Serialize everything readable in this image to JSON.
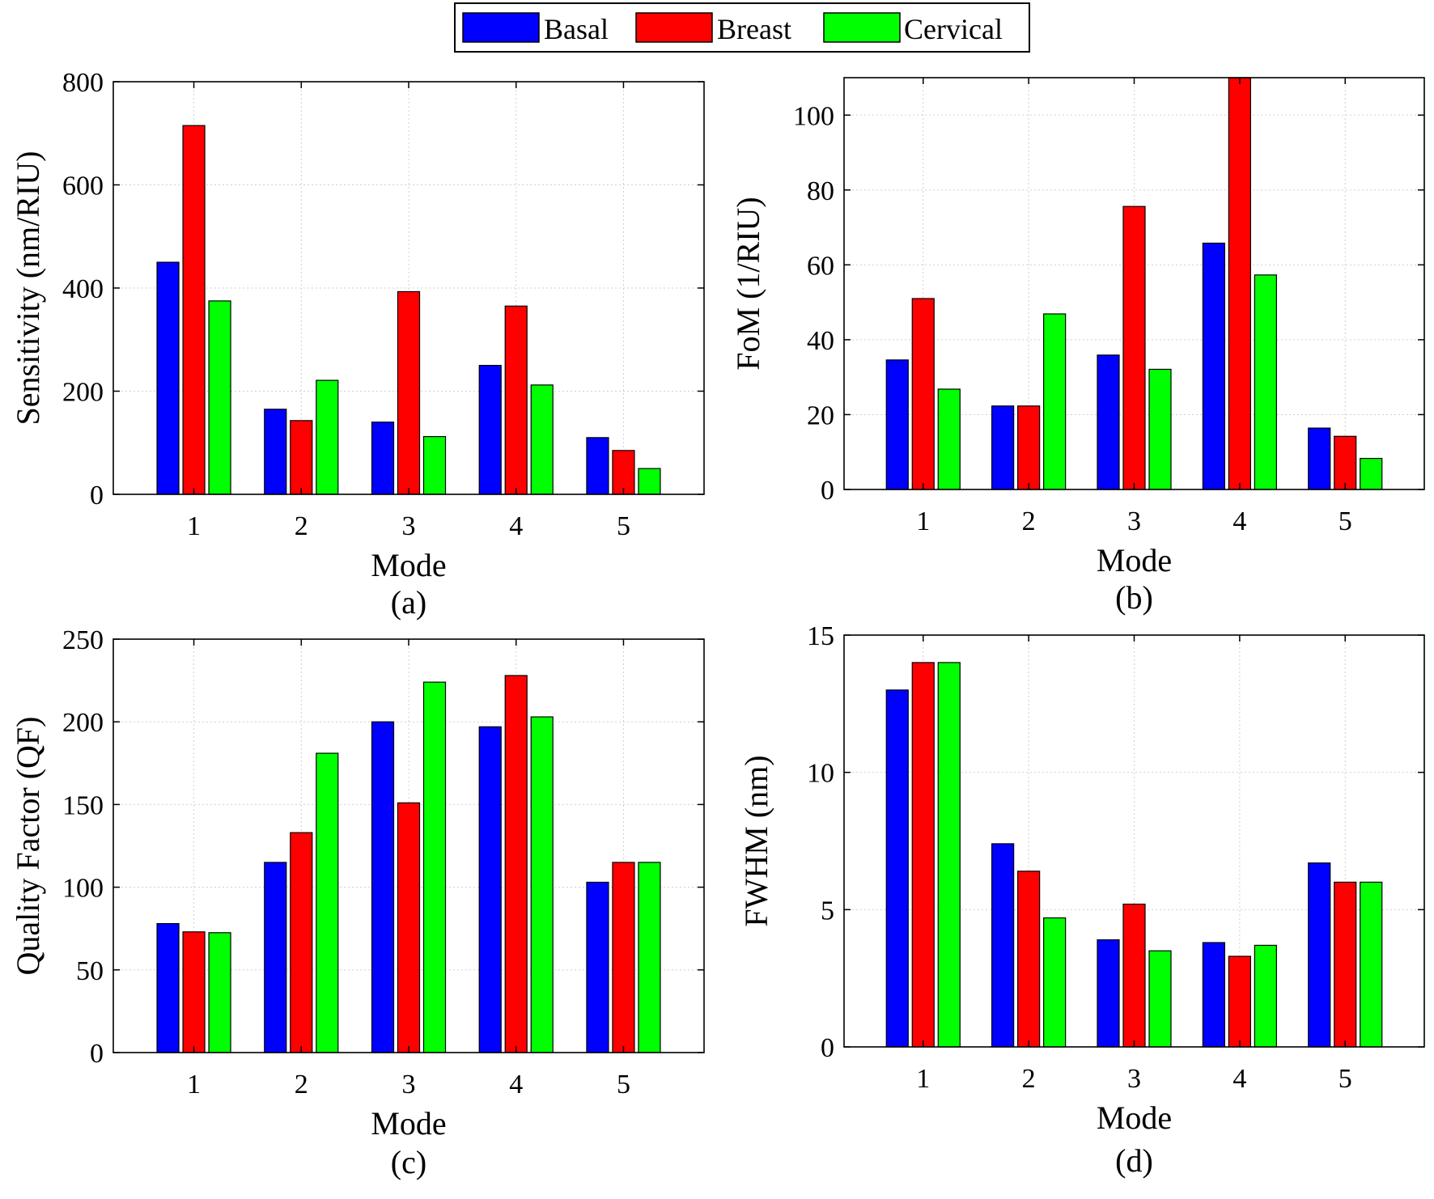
{
  "legend": {
    "entries": [
      {
        "name": "Basal",
        "color": "#0000ff"
      },
      {
        "name": "Breast",
        "color": "#ff0000"
      },
      {
        "name": "Cervical",
        "color": "#00ff00"
      }
    ],
    "placement": "top-center"
  },
  "chart_data": [
    {
      "id": "a",
      "type": "bar",
      "panel_label": "(a)",
      "xlabel": "Mode",
      "ylabel": "Sensitivity (nm/RIU)",
      "categories": [
        "1",
        "2",
        "3",
        "4",
        "5"
      ],
      "yticks": [
        0,
        200,
        400,
        600,
        800
      ],
      "ylim": [
        0,
        800
      ],
      "grid": true,
      "series": [
        {
          "name": "Basal",
          "values": [
            450,
            165,
            140,
            250,
            110
          ]
        },
        {
          "name": "Breast",
          "values": [
            715,
            143,
            393,
            365,
            85
          ]
        },
        {
          "name": "Cervical",
          "values": [
            375,
            221,
            112,
            212,
            50
          ]
        }
      ]
    },
    {
      "id": "b",
      "type": "bar",
      "panel_label": "(b)",
      "xlabel": "Mode",
      "ylabel": "FoM (1/RIU)",
      "categories": [
        "1",
        "2",
        "3",
        "4",
        "5"
      ],
      "yticks": [
        0,
        20,
        40,
        60,
        80,
        100
      ],
      "ylim": [
        0,
        110
      ],
      "grid": true,
      "series": [
        {
          "name": "Basal",
          "values": [
            34.6,
            22.3,
            35.9,
            65.8,
            16.4
          ]
        },
        {
          "name": "Breast",
          "values": [
            51,
            22.3,
            75.6,
            110,
            14.2
          ]
        },
        {
          "name": "Cervical",
          "values": [
            26.8,
            46.9,
            32.1,
            57.3,
            8.3
          ]
        }
      ]
    },
    {
      "id": "c",
      "type": "bar",
      "panel_label": "(c)",
      "xlabel": "Mode",
      "ylabel": "Quality Factor (QF)",
      "categories": [
        "1",
        "2",
        "3",
        "4",
        "5"
      ],
      "yticks": [
        0,
        50,
        100,
        150,
        200,
        250
      ],
      "ylim": [
        0,
        250
      ],
      "grid": true,
      "series": [
        {
          "name": "Basal",
          "values": [
            78,
            115,
            200,
            197,
            103
          ]
        },
        {
          "name": "Breast",
          "values": [
            73,
            133,
            151,
            228,
            115
          ]
        },
        {
          "name": "Cervical",
          "values": [
            72.5,
            181,
            224,
            203,
            115
          ]
        }
      ]
    },
    {
      "id": "d",
      "type": "bar",
      "panel_label": "(d)",
      "xlabel": "Mode",
      "ylabel": "FWHM (nm)",
      "categories": [
        "1",
        "2",
        "3",
        "4",
        "5"
      ],
      "yticks": [
        0,
        5,
        10,
        15
      ],
      "ylim": [
        0,
        15
      ],
      "grid": true,
      "series": [
        {
          "name": "Basal",
          "values": [
            13,
            7.4,
            3.9,
            3.8,
            6.7
          ]
        },
        {
          "name": "Breast",
          "values": [
            14,
            6.4,
            5.2,
            3.3,
            6
          ]
        },
        {
          "name": "Cervical",
          "values": [
            14,
            4.7,
            3.5,
            3.7,
            6
          ]
        }
      ]
    }
  ]
}
